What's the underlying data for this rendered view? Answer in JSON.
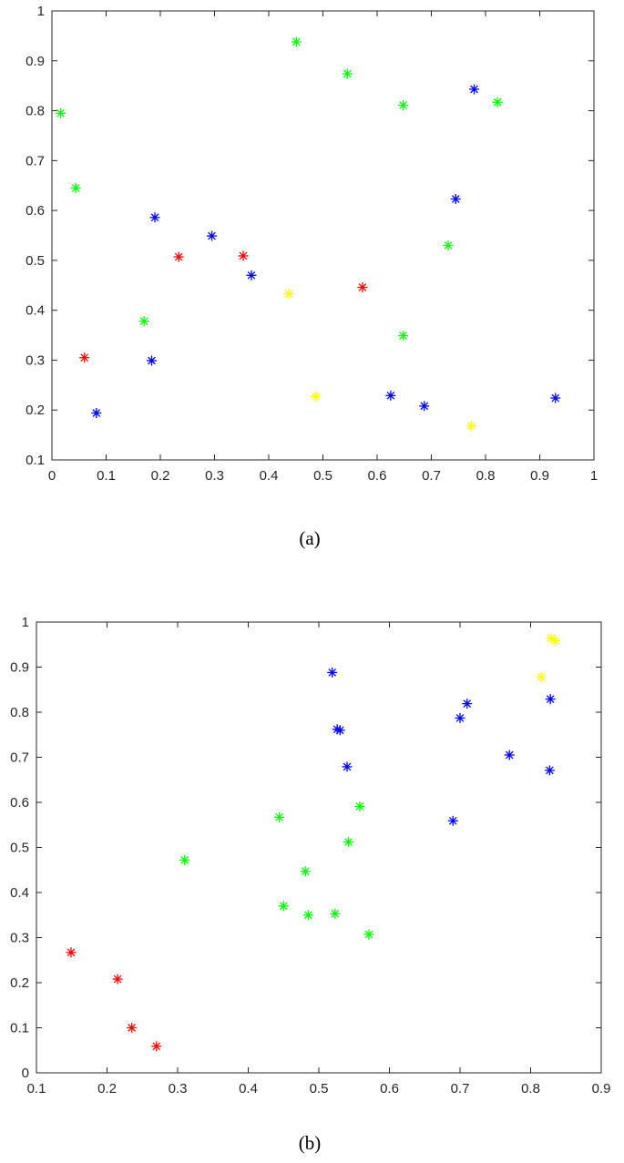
{
  "captions": {
    "a": "(a)",
    "b": "(b)"
  },
  "colors": {
    "green": "#00ff00",
    "blue": "#0000ff",
    "red": "#ff0000",
    "yellow": "#ffff00"
  },
  "chart_data": [
    {
      "id": "a",
      "type": "scatter",
      "marker": "asterisk",
      "xlim": [
        0,
        1
      ],
      "ylim": [
        0.1,
        1
      ],
      "xticks": [
        "0",
        "0.1",
        "0.2",
        "0.3",
        "0.4",
        "0.5",
        "0.6",
        "0.7",
        "0.8",
        "0.9",
        "1"
      ],
      "yticks": [
        "0.1",
        "0.2",
        "0.3",
        "0.4",
        "0.5",
        "0.6",
        "0.7",
        "0.8",
        "0.9",
        "1"
      ],
      "grid": false,
      "series": [
        {
          "color": "green",
          "x": [
            0.016,
            0.044,
            0.17,
            0.451,
            0.545,
            0.648,
            0.731,
            0.822,
            0.648
          ],
          "y": [
            0.795,
            0.645,
            0.378,
            0.938,
            0.874,
            0.811,
            0.53,
            0.817,
            0.349
          ]
        },
        {
          "color": "blue",
          "x": [
            0.082,
            0.19,
            0.184,
            0.295,
            0.368,
            0.625,
            0.687,
            0.745,
            0.779,
            0.929
          ],
          "y": [
            0.194,
            0.586,
            0.299,
            0.549,
            0.47,
            0.229,
            0.208,
            0.623,
            0.843,
            0.224
          ]
        },
        {
          "color": "red",
          "x": [
            0.06,
            0.234,
            0.353,
            0.573
          ],
          "y": [
            0.305,
            0.507,
            0.509,
            0.446
          ]
        },
        {
          "color": "yellow",
          "x": [
            0.437,
            0.487,
            0.774
          ],
          "y": [
            0.433,
            0.227,
            0.168
          ]
        }
      ]
    },
    {
      "id": "b",
      "type": "scatter",
      "marker": "asterisk",
      "xlim": [
        0.1,
        0.9
      ],
      "ylim": [
        0,
        1
      ],
      "xticks": [
        "0.1",
        "0.2",
        "0.3",
        "0.4",
        "0.5",
        "0.6",
        "0.7",
        "0.8",
        "0.9"
      ],
      "yticks": [
        "0",
        "0.1",
        "0.2",
        "0.3",
        "0.4",
        "0.5",
        "0.6",
        "0.7",
        "0.8",
        "0.9",
        "1"
      ],
      "grid": false,
      "series": [
        {
          "color": "green",
          "x": [
            0.31,
            0.444,
            0.45,
            0.481,
            0.485,
            0.523,
            0.542,
            0.558,
            0.571
          ],
          "y": [
            0.472,
            0.567,
            0.37,
            0.447,
            0.35,
            0.353,
            0.512,
            0.591,
            0.307
          ]
        },
        {
          "color": "blue",
          "x": [
            0.519,
            0.526,
            0.53,
            0.54,
            0.69,
            0.7,
            0.71,
            0.77,
            0.827,
            0.828
          ],
          "y": [
            0.888,
            0.762,
            0.76,
            0.679,
            0.559,
            0.787,
            0.819,
            0.705,
            0.671,
            0.829
          ]
        },
        {
          "color": "red",
          "x": [
            0.149,
            0.215,
            0.235,
            0.27
          ],
          "y": [
            0.267,
            0.208,
            0.1,
            0.059
          ]
        },
        {
          "color": "yellow",
          "x": [
            0.815,
            0.829,
            0.835
          ],
          "y": [
            0.878,
            0.964,
            0.959
          ]
        }
      ]
    }
  ]
}
